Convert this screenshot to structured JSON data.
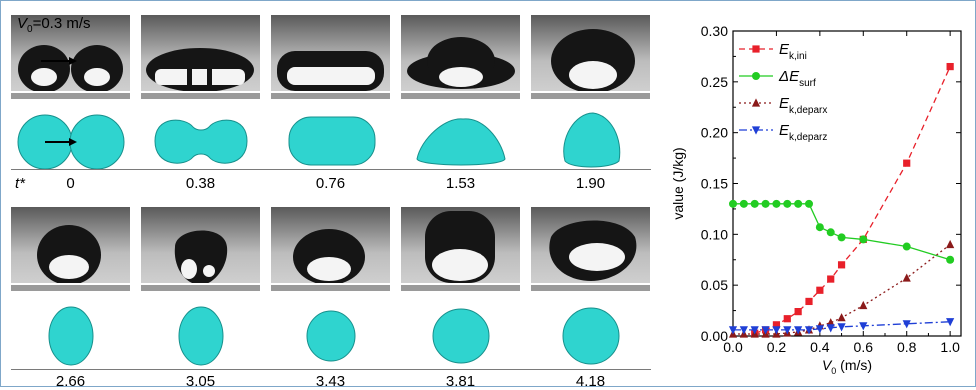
{
  "panel_label": {
    "v0_symbol": "V",
    "v0_sub": "0",
    "v0_value": "=0.3 m/s"
  },
  "time_axis_symbol": "t*",
  "time_labels_row1": [
    "0",
    "0.38",
    "0.76",
    "1.53",
    "1.90"
  ],
  "time_labels_row2": [
    "2.66",
    "3.05",
    "3.43",
    "3.81",
    "4.18"
  ],
  "colors": {
    "sim_fill": "#2fd4cf",
    "sim_edge": "#17908c"
  },
  "chart_data": {
    "type": "line",
    "ylabel": "value (J/kg)",
    "xlabel_main": "V",
    "xlabel_sub": "0",
    "xlabel_unit": " (m/s)",
    "xlim": [
      0.0,
      1.05
    ],
    "ylim": [
      0.0,
      0.3
    ],
    "xticks": [
      "0.0",
      "0.2",
      "0.4",
      "0.6",
      "0.8",
      "1.0"
    ],
    "yticks": [
      "0.00",
      "0.05",
      "0.10",
      "0.15",
      "0.20",
      "0.25",
      "0.30"
    ],
    "legend_position": "top-left",
    "series": [
      {
        "name_main": "E",
        "name_sub": "k,ini",
        "color": "#e8202a",
        "marker": "square",
        "dash": "6,4",
        "x": [
          0.1,
          0.15,
          0.2,
          0.25,
          0.3,
          0.35,
          0.4,
          0.45,
          0.5,
          0.6,
          0.8,
          1.0
        ],
        "y": [
          0.0027,
          0.006,
          0.011,
          0.017,
          0.024,
          0.034,
          0.045,
          0.056,
          0.07,
          0.095,
          0.17,
          0.265
        ]
      },
      {
        "name_main": "ΔE",
        "name_sub": "surf",
        "color": "#22cc22",
        "marker": "circle",
        "dash": "",
        "x": [
          0.0,
          0.05,
          0.1,
          0.15,
          0.2,
          0.25,
          0.3,
          0.35,
          0.4,
          0.45,
          0.5,
          0.6,
          0.8,
          1.0
        ],
        "y": [
          0.13,
          0.13,
          0.13,
          0.13,
          0.13,
          0.13,
          0.13,
          0.13,
          0.107,
          0.102,
          0.097,
          0.095,
          0.088,
          0.075
        ]
      },
      {
        "name_main": "E",
        "name_sub": "k,deparx",
        "color": "#8b1a1a",
        "marker": "triangle-up",
        "dash": "2,3",
        "x": [
          0.0,
          0.05,
          0.1,
          0.15,
          0.2,
          0.25,
          0.3,
          0.35,
          0.4,
          0.45,
          0.5,
          0.6,
          0.8,
          1.0
        ],
        "y": [
          0.002,
          0.002,
          0.002,
          0.002,
          0.002,
          0.003,
          0.004,
          0.006,
          0.01,
          0.013,
          0.018,
          0.03,
          0.057,
          0.09
        ]
      },
      {
        "name_main": "E",
        "name_sub": "k,deparz",
        "color": "#1f3fd6",
        "marker": "triangle-down",
        "dash": "8,3,2,3",
        "x": [
          0.0,
          0.05,
          0.1,
          0.15,
          0.2,
          0.25,
          0.3,
          0.35,
          0.4,
          0.45,
          0.5,
          0.6,
          0.8,
          1.0
        ],
        "y": [
          0.006,
          0.006,
          0.006,
          0.006,
          0.006,
          0.006,
          0.006,
          0.006,
          0.007,
          0.008,
          0.009,
          0.01,
          0.012,
          0.014
        ]
      }
    ]
  }
}
